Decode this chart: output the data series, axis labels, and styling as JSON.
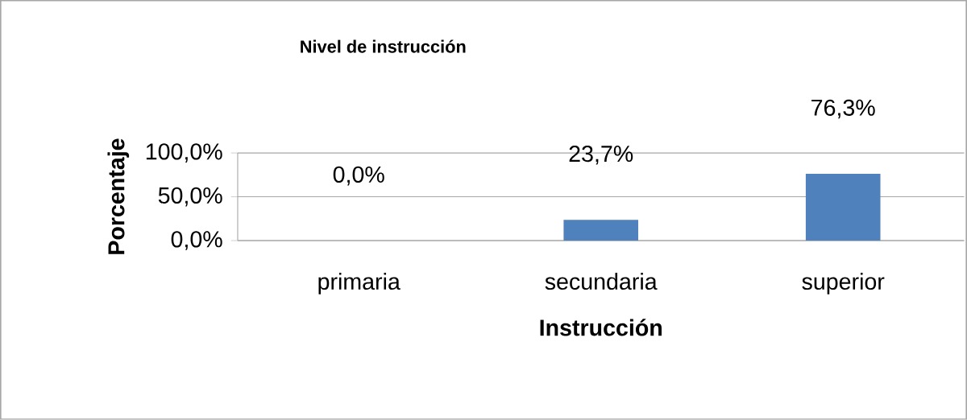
{
  "chart_data": {
    "type": "bar",
    "title": "Nivel de instrucción",
    "xlabel": "Instrucción",
    "ylabel": "Porcentaje",
    "categories": [
      "primaria",
      "secundaria",
      "superior"
    ],
    "values": [
      0,
      23.7,
      76.3
    ],
    "value_labels": [
      "0,0%",
      "23,7%",
      "76,3%"
    ],
    "color": "#4f81bd",
    "ylim": [
      0,
      100
    ],
    "yticks": [
      {
        "value": 0,
        "label": "0,0%"
      },
      {
        "value": 50,
        "label": "50,0%"
      },
      {
        "value": 100,
        "label": "100,0%"
      }
    ],
    "grid": "y"
  }
}
